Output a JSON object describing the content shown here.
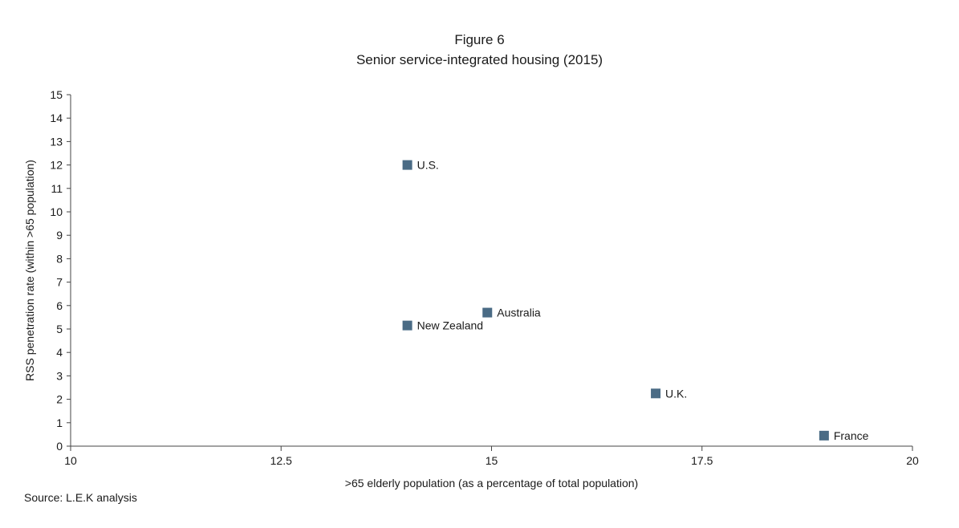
{
  "chart_data": {
    "type": "scatter",
    "title": "Figure 6",
    "subtitle": "Senior service-integrated housing (2015)",
    "xlabel": ">65 elderly population (as a percentage of total population)",
    "ylabel": "RSS penetration rate (within >65 population)",
    "xlim": [
      10,
      20
    ],
    "ylim": [
      0,
      15
    ],
    "xticks": [
      10,
      12.5,
      15,
      17.5,
      20
    ],
    "xtick_labels": [
      "10",
      "12.5",
      "15",
      "17.5",
      "20"
    ],
    "yticks": [
      0,
      1,
      2,
      3,
      4,
      5,
      6,
      7,
      8,
      9,
      10,
      11,
      12,
      13,
      14,
      15
    ],
    "grid": false,
    "marker": "square",
    "marker_color": "#4a6b85",
    "points": [
      {
        "label": "U.S.",
        "x": 14.0,
        "y": 12.0
      },
      {
        "label": "Australia",
        "x": 14.95,
        "y": 5.7
      },
      {
        "label": "New Zealand",
        "x": 14.0,
        "y": 5.15
      },
      {
        "label": "U.K.",
        "x": 16.95,
        "y": 2.25
      },
      {
        "label": "France",
        "x": 18.95,
        "y": 0.45
      }
    ]
  },
  "source": "Source: L.E.K analysis"
}
